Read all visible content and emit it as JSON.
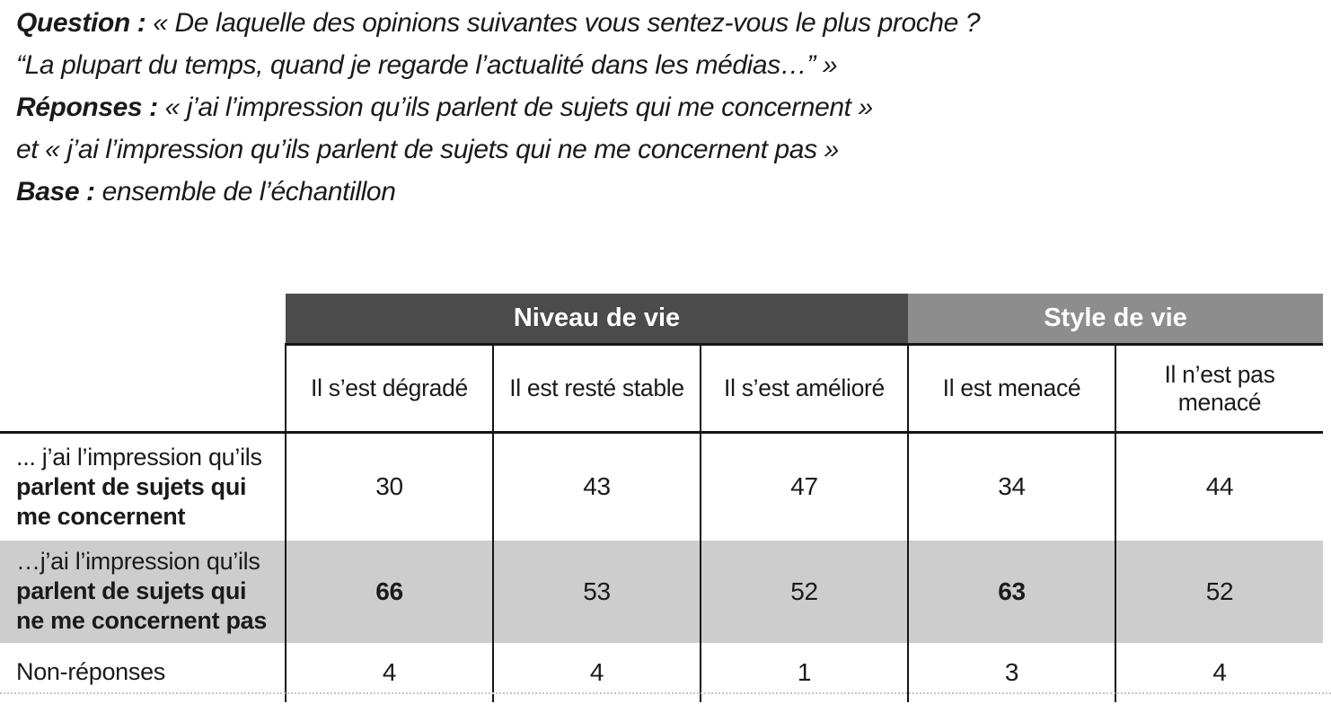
{
  "intro": {
    "lines": [
      {
        "label": "Question :",
        "text": " « De laquelle des opinions suivantes vous sentez-vous le plus proche ?"
      },
      {
        "label": "",
        "text": "“La plupart du temps, quand je regarde l’actualité dans les médias…” »"
      },
      {
        "label": "Réponses :",
        "text": " « j’ai l’impression qu’ils parlent de sujets qui me concernent »"
      },
      {
        "label": "",
        "text": "et « j’ai l’impression qu’ils parlent de sujets qui ne me concernent pas »"
      },
      {
        "label": "Base :",
        "text": " ensemble de l’échantillon"
      }
    ]
  },
  "table": {
    "group_headers": [
      {
        "label": "Niveau de vie",
        "colspan": 3
      },
      {
        "label": "Style de vie",
        "colspan": 2
      }
    ],
    "column_headers": [
      "Il s’est dégradé",
      "Il est resté stable",
      "Il s’est amélioré",
      "Il est menacé",
      "Il n’est pas menacé"
    ],
    "rows": [
      {
        "label_prefix": "... j’ai l’impression qu’ils",
        "label_bold": "parlent de sujets qui me concernent",
        "values": [
          "30",
          "43",
          "47",
          "34",
          "44"
        ],
        "bold_values": [
          false,
          false,
          false,
          false,
          false
        ],
        "shaded": false
      },
      {
        "label_prefix": "…j’ai l’impression qu’ils",
        "label_bold": "parlent de sujets qui ne me concernent pas",
        "values": [
          "66",
          "53",
          "52",
          "63",
          "52"
        ],
        "bold_values": [
          true,
          false,
          false,
          true,
          false
        ],
        "shaded": true
      },
      {
        "label_prefix": "Non-réponses",
        "label_bold": "",
        "values": [
          "4",
          "4",
          "1",
          "3",
          "4"
        ],
        "bold_values": [
          false,
          false,
          false,
          false,
          false
        ],
        "shaded": false
      }
    ],
    "colors": {
      "niveau_header_bg": "#4b4b4b",
      "style_header_bg": "#8d8d8d",
      "shaded_row_bg": "#cdcdcd",
      "header_text": "#ffffff",
      "border": "#161616",
      "body_text": "#1a1a1a"
    }
  }
}
